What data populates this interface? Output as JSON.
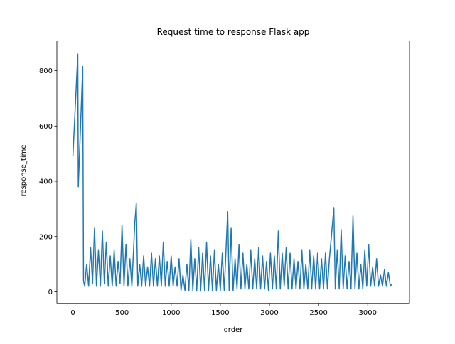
{
  "chart_data": {
    "type": "line",
    "title": "Request time to response Flask app",
    "x_label": "order",
    "y_label": "response_time",
    "x": [
      0,
      50,
      55,
      100,
      108,
      120,
      140,
      160,
      180,
      200,
      220,
      240,
      260,
      280,
      300,
      320,
      340,
      360,
      380,
      400,
      420,
      440,
      460,
      480,
      500,
      520,
      540,
      560,
      580,
      600,
      630,
      645,
      660,
      680,
      700,
      720,
      740,
      760,
      780,
      800,
      820,
      840,
      860,
      880,
      900,
      920,
      940,
      960,
      980,
      1000,
      1020,
      1040,
      1060,
      1080,
      1100,
      1120,
      1140,
      1160,
      1180,
      1200,
      1220,
      1240,
      1260,
      1280,
      1300,
      1320,
      1340,
      1360,
      1380,
      1400,
      1420,
      1440,
      1460,
      1480,
      1500,
      1520,
      1540,
      1560,
      1575,
      1590,
      1610,
      1630,
      1650,
      1670,
      1690,
      1710,
      1730,
      1750,
      1770,
      1790,
      1810,
      1830,
      1850,
      1870,
      1890,
      1910,
      1930,
      1950,
      1970,
      1990,
      2010,
      2030,
      2050,
      2070,
      2090,
      2110,
      2130,
      2150,
      2170,
      2190,
      2210,
      2230,
      2250,
      2270,
      2290,
      2310,
      2330,
      2350,
      2370,
      2390,
      2410,
      2430,
      2450,
      2470,
      2490,
      2510,
      2530,
      2550,
      2570,
      2590,
      2610,
      2640,
      2655,
      2670,
      2690,
      2710,
      2730,
      2750,
      2770,
      2790,
      2810,
      2830,
      2850,
      2870,
      2890,
      2910,
      2930,
      2950,
      2970,
      2990,
      3010,
      3030,
      3050,
      3070,
      3090,
      3110,
      3130,
      3150,
      3170,
      3190,
      3210,
      3230,
      3250
    ],
    "series": [
      {
        "color": "#1f77b4",
        "values": [
          490,
          860,
          380,
          815,
          40,
          20,
          100,
          20,
          160,
          30,
          230,
          20,
          150,
          20,
          220,
          30,
          180,
          20,
          130,
          20,
          150,
          20,
          110,
          30,
          240,
          20,
          170,
          20,
          120,
          20,
          250,
          320,
          20,
          100,
          20,
          130,
          20,
          90,
          20,
          140,
          20,
          120,
          20,
          130,
          20,
          180,
          20,
          110,
          20,
          130,
          20,
          90,
          20,
          120,
          5,
          60,
          5,
          100,
          5,
          190,
          5,
          120,
          5,
          160,
          5,
          140,
          5,
          180,
          5,
          130,
          5,
          150,
          5,
          100,
          5,
          140,
          5,
          170,
          290,
          5,
          230,
          5,
          120,
          10,
          170,
          10,
          140,
          10,
          100,
          10,
          150,
          10,
          120,
          10,
          160,
          10,
          130,
          10,
          110,
          5,
          140,
          10,
          130,
          10,
          220,
          10,
          140,
          20,
          160,
          10,
          140,
          10,
          120,
          10,
          110,
          10,
          150,
          10,
          100,
          10,
          150,
          10,
          130,
          10,
          140,
          10,
          120,
          10,
          140,
          10,
          120,
          240,
          305,
          10,
          150,
          10,
          225,
          10,
          130,
          10,
          110,
          10,
          275,
          10,
          140,
          10,
          100,
          10,
          150,
          20,
          170,
          20,
          90,
          20,
          120,
          20,
          60,
          20,
          80,
          20,
          70,
          20,
          30
        ]
      }
    ],
    "xlim": [
      -163,
      3425
    ],
    "ylim": [
      -43,
      908
    ],
    "xticks": [
      0,
      500,
      1000,
      1500,
      2000,
      2500,
      3000
    ],
    "yticks": [
      0,
      200,
      400,
      600,
      800
    ]
  }
}
